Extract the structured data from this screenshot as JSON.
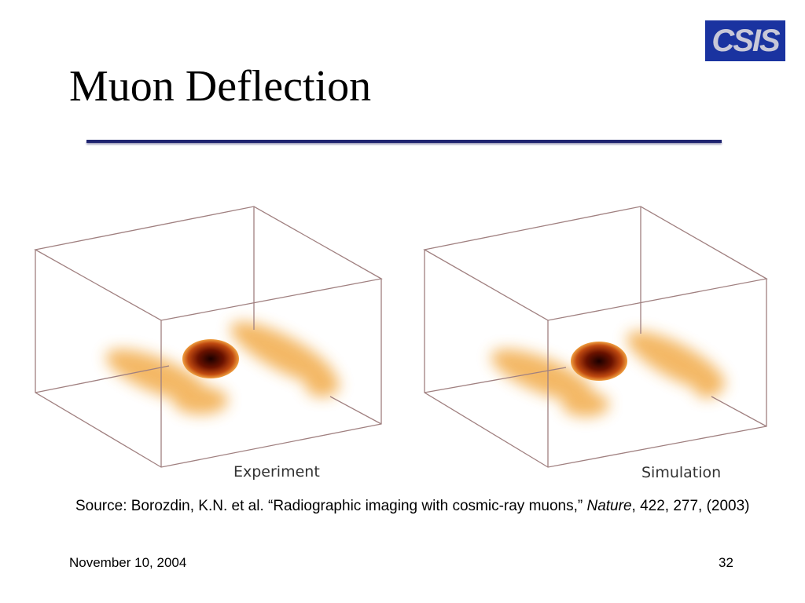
{
  "header": {
    "title": "Muon Deflection",
    "logo": "CSIS"
  },
  "figure": {
    "panels": [
      {
        "label": "Experiment"
      },
      {
        "label": "Simulation"
      }
    ]
  },
  "source": {
    "text": "Source: Borozdin, K.N. et al. “Radiographic imaging with cosmic-ray muons,” ",
    "journal": "Nature",
    "citation": ", 422, 277, (2003)"
  },
  "footer": {
    "date": "November 10, 2004",
    "page": "32"
  }
}
